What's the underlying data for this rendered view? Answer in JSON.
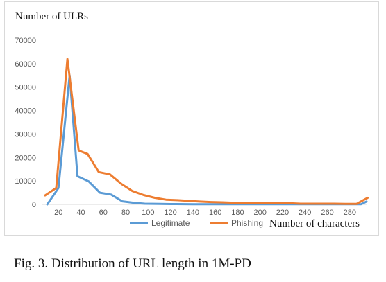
{
  "caption": "Fig. 3.   Distribution of URL length in 1M-PD",
  "chart_data": {
    "type": "line",
    "ylabel": "Number of ULRs",
    "xlabel": "Number of characters",
    "ylim": [
      0,
      70000
    ],
    "xlim": [
      5,
      295
    ],
    "y_ticks": [
      0,
      10000,
      20000,
      30000,
      40000,
      50000,
      60000,
      70000
    ],
    "x_ticks": [
      20,
      40,
      60,
      80,
      100,
      120,
      140,
      160,
      180,
      200,
      220,
      240,
      260,
      280
    ],
    "legend_position": "bottom",
    "grid": false,
    "series": [
      {
        "name": "Legitimate",
        "color": "#5b9bd5",
        "x": [
          10,
          20,
          30,
          37,
          47,
          57,
          67,
          77,
          87,
          97,
          110,
          120,
          140,
          150,
          160,
          170,
          180,
          200,
          220,
          240,
          260,
          280,
          290,
          295
        ],
        "values": [
          0,
          7000,
          55000,
          12000,
          9800,
          5000,
          4200,
          1300,
          700,
          300,
          200,
          150,
          100,
          100,
          80,
          60,
          50,
          50,
          50,
          50,
          50,
          50,
          50,
          1200
        ]
      },
      {
        "name": "Phishing",
        "color": "#ed7d31",
        "x": [
          8,
          18,
          28,
          38,
          46,
          56,
          66,
          76,
          86,
          96,
          106,
          116,
          126,
          136,
          146,
          156,
          166,
          176,
          186,
          196,
          206,
          216,
          226,
          236,
          246,
          256,
          266,
          276,
          286,
          296
        ],
        "values": [
          3800,
          7000,
          62000,
          23000,
          21500,
          13800,
          12800,
          8800,
          5700,
          4000,
          2800,
          2000,
          1800,
          1500,
          1200,
          1000,
          900,
          700,
          600,
          500,
          500,
          600,
          500,
          300,
          300,
          300,
          300,
          200,
          200,
          2800
        ]
      }
    ]
  }
}
